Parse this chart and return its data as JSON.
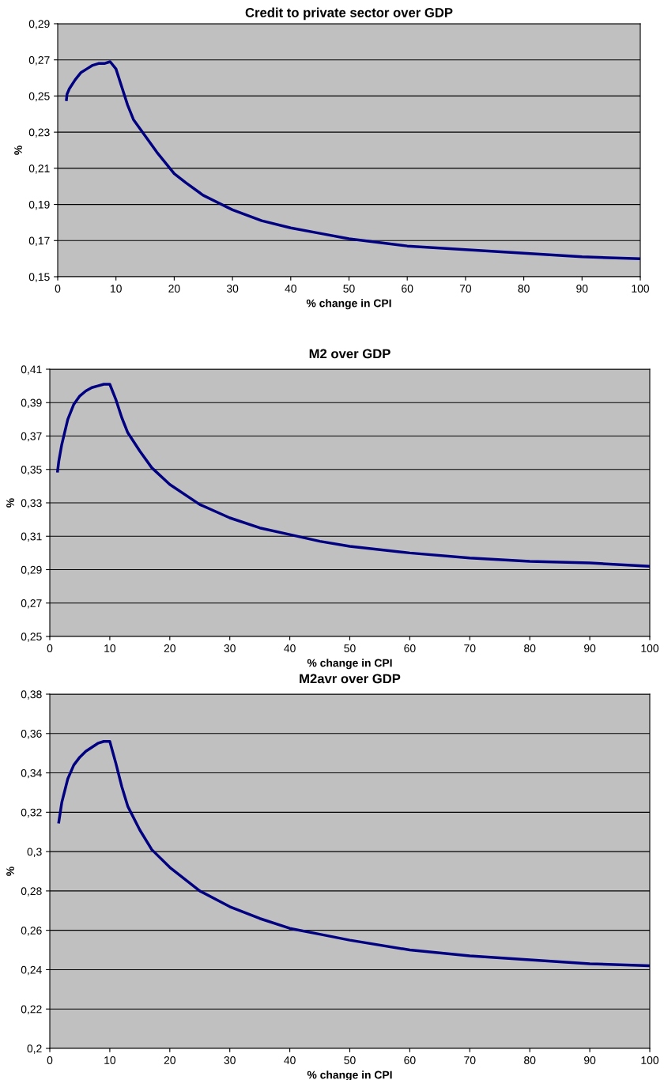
{
  "chart_data": [
    {
      "type": "line",
      "title": "Credit to private sector over GDP",
      "xlabel": "% change in CPI",
      "ylabel": "%",
      "grid": "y",
      "legend": false,
      "marker": "none",
      "line_style": "solid",
      "xlim": [
        0,
        100
      ],
      "xticks": [
        0,
        10,
        20,
        30,
        40,
        50,
        60,
        70,
        80,
        90,
        100
      ],
      "ylim": [
        0.15,
        0.29
      ],
      "yticks": [
        {
          "value": 0.15,
          "label": "0,15"
        },
        {
          "value": 0.17,
          "label": "0,17"
        },
        {
          "value": 0.19,
          "label": "0,19"
        },
        {
          "value": 0.21,
          "label": "0,21"
        },
        {
          "value": 0.23,
          "label": "0,23"
        },
        {
          "value": 0.25,
          "label": "0,25"
        },
        {
          "value": 0.27,
          "label": "0,27"
        },
        {
          "value": 0.29,
          "label": "0,29"
        }
      ],
      "series": [
        {
          "color": "#000080",
          "x": [
            1.5,
            1.6,
            2,
            3,
            4,
            5,
            6,
            7,
            8,
            9,
            10,
            11,
            12,
            13,
            15,
            17,
            20,
            22,
            25,
            30,
            35,
            40,
            45,
            50,
            60,
            70,
            80,
            90,
            100
          ],
          "values": [
            0.248,
            0.251,
            0.254,
            0.259,
            0.263,
            0.265,
            0.267,
            0.268,
            0.268,
            0.269,
            0.265,
            0.255,
            0.245,
            0.237,
            0.228,
            0.219,
            0.207,
            0.202,
            0.195,
            0.187,
            0.181,
            0.177,
            0.174,
            0.171,
            0.167,
            0.165,
            0.163,
            0.161,
            0.16
          ]
        }
      ]
    },
    {
      "type": "line",
      "title": "M2 over GDP",
      "xlabel": "% change in CPI",
      "ylabel": "%",
      "grid": "y",
      "legend": false,
      "marker": "none",
      "line_style": "solid",
      "xlim": [
        0,
        100
      ],
      "xticks": [
        0,
        10,
        20,
        30,
        40,
        50,
        60,
        70,
        80,
        90,
        100
      ],
      "ylim": [
        0.25,
        0.41
      ],
      "yticks": [
        {
          "value": 0.25,
          "label": "0,25"
        },
        {
          "value": 0.27,
          "label": "0,27"
        },
        {
          "value": 0.29,
          "label": "0,29"
        },
        {
          "value": 0.31,
          "label": "0,31"
        },
        {
          "value": 0.33,
          "label": "0,33"
        },
        {
          "value": 0.35,
          "label": "0,35"
        },
        {
          "value": 0.37,
          "label": "0,37"
        },
        {
          "value": 0.39,
          "label": "0,39"
        },
        {
          "value": 0.41,
          "label": "0,41"
        }
      ],
      "series": [
        {
          "color": "#000080",
          "x": [
            1.3,
            1.5,
            2,
            3,
            4,
            5,
            6,
            7,
            8,
            9,
            10,
            11,
            12,
            13,
            15,
            17,
            20,
            25,
            30,
            35,
            40,
            45,
            50,
            60,
            70,
            80,
            90,
            100
          ],
          "values": [
            0.349,
            0.355,
            0.365,
            0.38,
            0.389,
            0.394,
            0.397,
            0.399,
            0.4,
            0.401,
            0.401,
            0.392,
            0.381,
            0.372,
            0.361,
            0.351,
            0.341,
            0.329,
            0.321,
            0.315,
            0.311,
            0.307,
            0.304,
            0.3,
            0.297,
            0.295,
            0.294,
            0.292
          ]
        }
      ]
    },
    {
      "type": "line",
      "title": "M2avr over GDP",
      "xlabel": "% change in CPI",
      "ylabel": "%",
      "grid": "y",
      "legend": false,
      "marker": "none",
      "line_style": "solid",
      "xlim": [
        0,
        100
      ],
      "xticks": [
        0,
        10,
        20,
        30,
        40,
        50,
        60,
        70,
        80,
        90,
        100
      ],
      "ylim": [
        0.2,
        0.38
      ],
      "yticks": [
        {
          "value": 0.2,
          "label": "0,2"
        },
        {
          "value": 0.22,
          "label": "0,22"
        },
        {
          "value": 0.24,
          "label": "0,24"
        },
        {
          "value": 0.26,
          "label": "0,26"
        },
        {
          "value": 0.28,
          "label": "0,28"
        },
        {
          "value": 0.3,
          "label": "0,3"
        },
        {
          "value": 0.32,
          "label": "0,32"
        },
        {
          "value": 0.34,
          "label": "0,34"
        },
        {
          "value": 0.36,
          "label": "0,36"
        },
        {
          "value": 0.38,
          "label": "0,38"
        }
      ],
      "series": [
        {
          "color": "#000080",
          "x": [
            1.5,
            2,
            3,
            4,
            5,
            6,
            7,
            8,
            9,
            10,
            11,
            12,
            13,
            15,
            17,
            20,
            25,
            30,
            35,
            40,
            45,
            50,
            60,
            70,
            80,
            90,
            100
          ],
          "values": [
            0.315,
            0.325,
            0.337,
            0.344,
            0.348,
            0.351,
            0.353,
            0.355,
            0.356,
            0.356,
            0.345,
            0.333,
            0.323,
            0.311,
            0.301,
            0.292,
            0.28,
            0.272,
            0.266,
            0.261,
            0.258,
            0.255,
            0.25,
            0.247,
            0.245,
            0.243,
            0.242
          ]
        }
      ]
    }
  ]
}
